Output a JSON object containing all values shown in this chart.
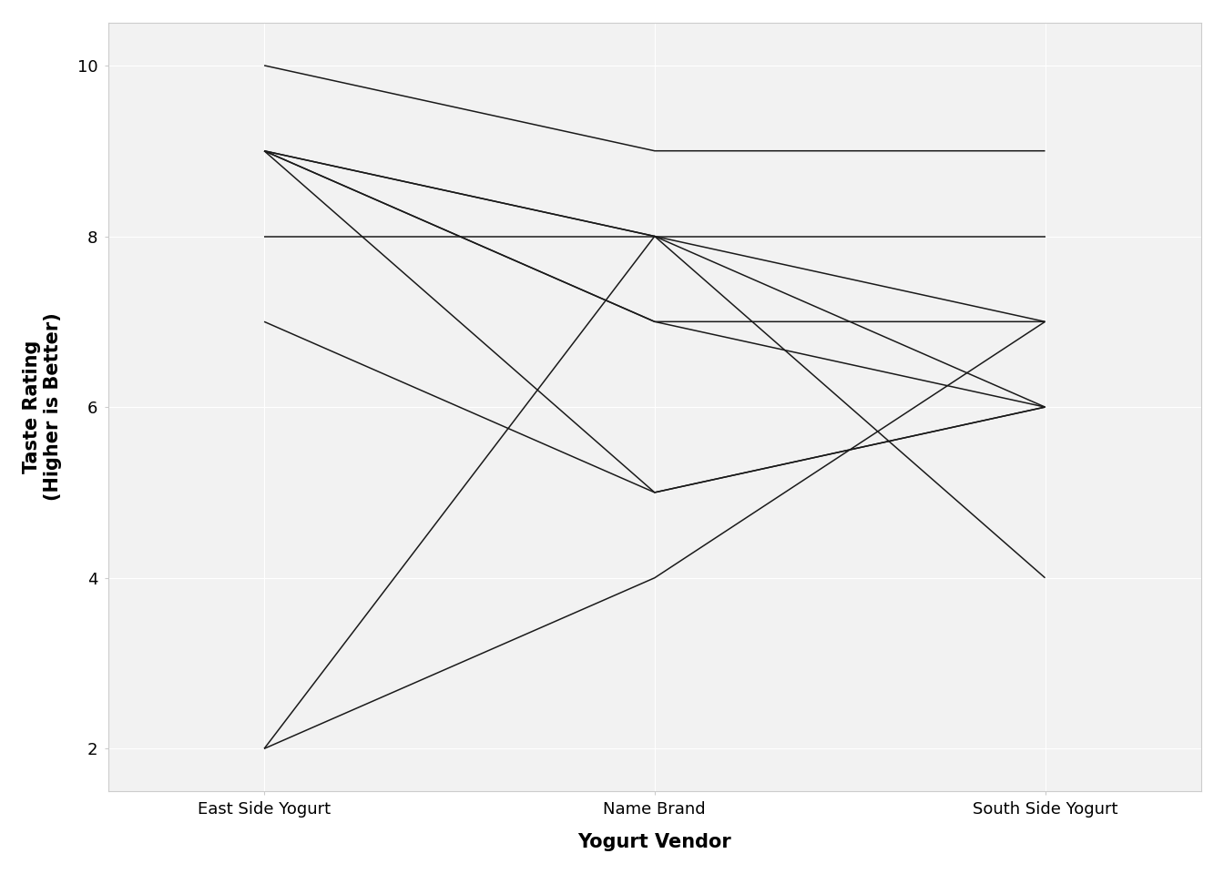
{
  "title": "",
  "xlabel": "Yogurt Vendor",
  "ylabel": "Taste Rating\n(Higher is Better)",
  "vendors": [
    "East Side Yogurt",
    "Name Brand",
    "South Side Yogurt"
  ],
  "participants": [
    [
      10,
      9,
      9
    ],
    [
      9,
      8,
      7
    ],
    [
      9,
      8,
      6
    ],
    [
      9,
      7,
      7
    ],
    [
      9,
      7,
      6
    ],
    [
      9,
      5,
      6
    ],
    [
      8,
      8,
      8
    ],
    [
      7,
      5,
      6
    ],
    [
      2,
      8,
      4
    ],
    [
      2,
      4,
      7
    ]
  ],
  "line_color": "#1a1a1a",
  "line_width": 1.1,
  "ylim": [
    1.5,
    10.5
  ],
  "yticks": [
    2,
    4,
    6,
    8,
    10
  ],
  "panel_background": "#f2f2f2",
  "plot_background": "#ffffff",
  "grid_color": "#ffffff",
  "border_color": "#cccccc",
  "axis_label_fontsize": 15,
  "tick_fontsize": 13
}
